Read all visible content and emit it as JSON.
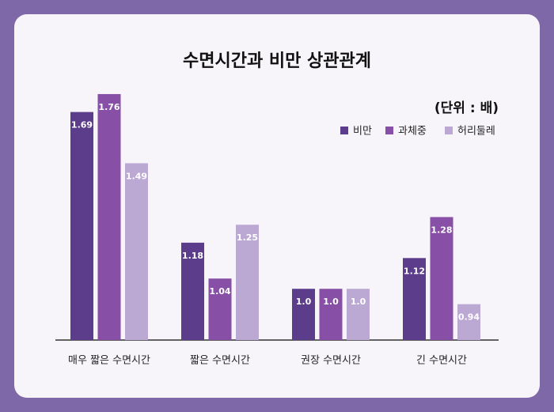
{
  "chart_data": {
    "type": "bar",
    "title": "수면시간과 비만 상관관계",
    "subtitle": "(단위 : 배)",
    "categories": [
      "매우 짧은 수면시간",
      "짧은 수면시간",
      "권장 수면시간",
      "긴 수면시간"
    ],
    "series": [
      {
        "name": "비만",
        "color": "#5c3d8c",
        "values": [
          1.69,
          1.18,
          1.0,
          1.12
        ],
        "value_labels": [
          "1.69",
          "1.18",
          "1.0",
          "1.12"
        ]
      },
      {
        "name": "과체중",
        "color": "#8750a6",
        "values": [
          1.76,
          1.04,
          1.0,
          1.28
        ],
        "value_labels": [
          "1.76",
          "1.04",
          "1.0",
          "1.28"
        ]
      },
      {
        "name": "허리둘레",
        "color": "#bba8d3",
        "values": [
          1.49,
          1.25,
          1.0,
          0.94
        ],
        "value_labels": [
          "1.49",
          "1.25",
          "1.0",
          "0.94"
        ]
      }
    ],
    "ylim": [
      0.8,
      1.8
    ]
  }
}
